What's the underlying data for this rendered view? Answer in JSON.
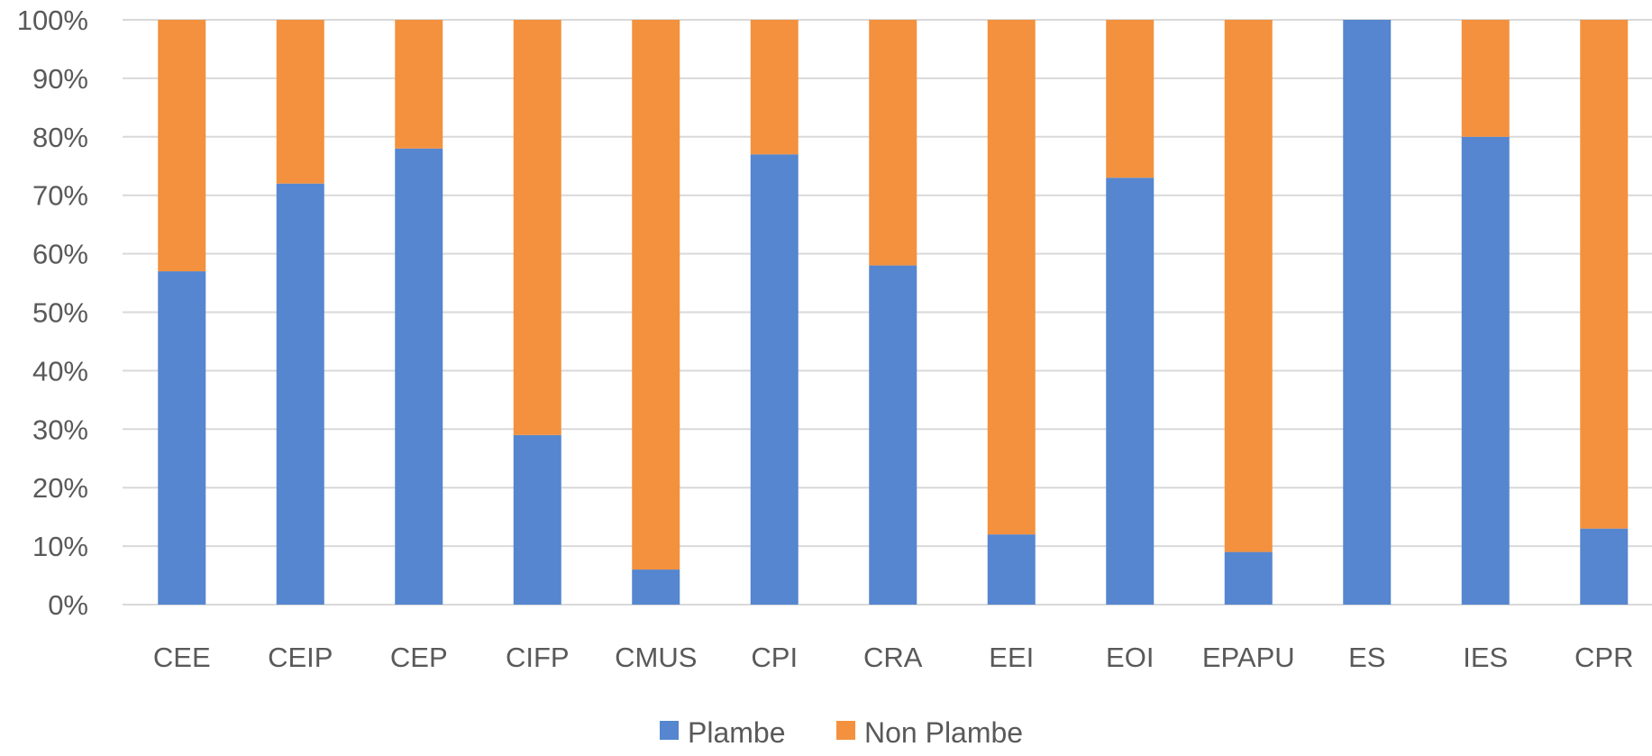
{
  "chart_data": {
    "type": "bar",
    "stacked": true,
    "percent_stacked": true,
    "categories": [
      "CEE",
      "CEIP",
      "CEP",
      "CIFP",
      "CMUS",
      "CPI",
      "CRA",
      "EEI",
      "EOI",
      "EPAPU",
      "ES",
      "IES",
      "CPR"
    ],
    "series": [
      {
        "name": "Plambe",
        "color": "#5586cf",
        "values": [
          57,
          72,
          78,
          29,
          6,
          77,
          58,
          12,
          73,
          9,
          100,
          80,
          13
        ]
      },
      {
        "name": "Non Plambe",
        "color": "#f3913e",
        "values": [
          43,
          28,
          22,
          71,
          94,
          23,
          42,
          88,
          27,
          91,
          0,
          20,
          87
        ]
      }
    ],
    "y_ticks": [
      "0%",
      "10%",
      "20%",
      "30%",
      "40%",
      "50%",
      "60%",
      "70%",
      "80%",
      "90%",
      "100%"
    ],
    "ylim": [
      0,
      100
    ],
    "grid": true,
    "legend_position": "bottom-center",
    "title": "",
    "xlabel": "",
    "ylabel": ""
  }
}
